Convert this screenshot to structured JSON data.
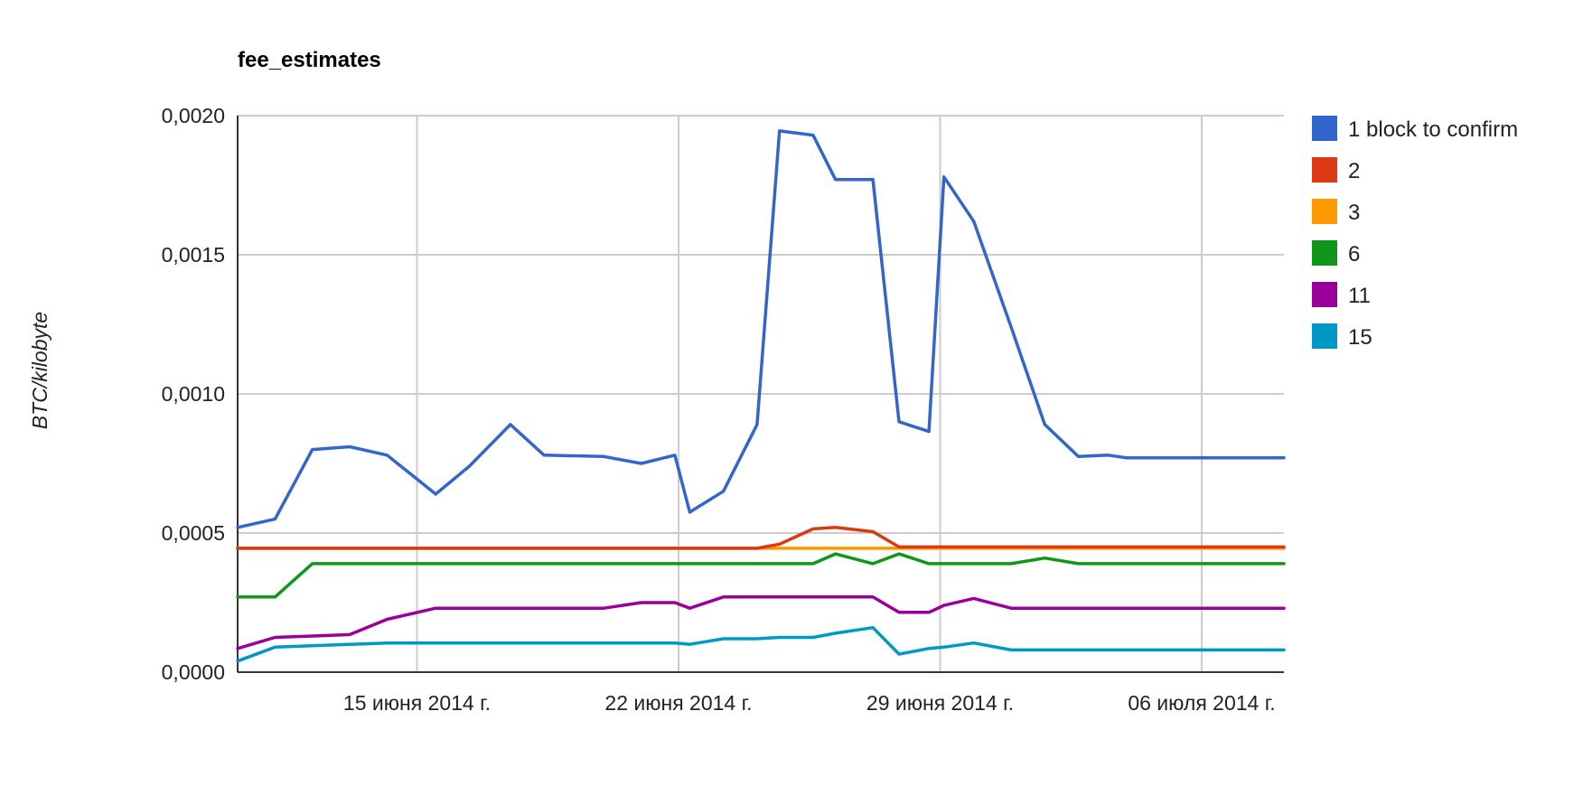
{
  "chart_data": {
    "type": "line",
    "title": "fee_estimates",
    "ylabel": "BTC/kilobyte",
    "xlabel": "",
    "ylim": [
      0,
      0.002
    ],
    "y_ticks": [
      "0,0000",
      "0,0005",
      "0,0010",
      "0,0015",
      "0,0020"
    ],
    "y_tick_values": [
      0,
      0.0005,
      0.001,
      0.0015,
      0.002
    ],
    "x_tick_labels": [
      "15 июня 2014 г.",
      "22 июня 2014 г.",
      "29 июня 2014 г.",
      "06 июля 2014 г."
    ],
    "x_tick_values": [
      7.0,
      14.0,
      21.0,
      28.0
    ],
    "xlim": [
      2.2,
      30.2
    ],
    "grid": true,
    "legend_position": "right",
    "x": [
      2.2,
      3.2,
      4.2,
      5.2,
      6.2,
      7.5,
      8.4,
      9.5,
      10.4,
      12.0,
      13.0,
      13.9,
      14.3,
      15.2,
      16.1,
      16.7,
      17.6,
      18.2,
      19.2,
      19.9,
      20.7,
      21.1,
      21.9,
      22.9,
      23.8,
      24.7,
      25.5,
      26.0,
      27.3,
      27.8,
      28.7,
      29.6,
      30.2
    ],
    "series": [
      {
        "name": "1 block to confirm",
        "color": "#3366cc",
        "values": [
          0.00052,
          0.00055,
          0.0008,
          0.00081,
          0.00078,
          0.00064,
          0.00074,
          0.00089,
          0.00078,
          0.000775,
          0.00075,
          0.00078,
          0.000575,
          0.00065,
          0.00089,
          0.001945,
          0.00193,
          0.00177,
          0.00177,
          0.0009,
          0.000865,
          0.00178,
          0.00162,
          0.00124,
          0.00089,
          0.000775,
          0.00078,
          0.00077,
          0.00077,
          0.00077,
          0.00077,
          0.00077,
          0.00077
        ]
      },
      {
        "name": "2",
        "color": "#dc3912",
        "values": [
          0.000445,
          0.000445,
          0.000445,
          0.000445,
          0.000445,
          0.000445,
          0.000445,
          0.000445,
          0.000445,
          0.000445,
          0.000445,
          0.000445,
          0.000445,
          0.000445,
          0.000445,
          0.00046,
          0.000515,
          0.00052,
          0.000505,
          0.00045,
          0.00045,
          0.00045,
          0.00045,
          0.00045,
          0.00045,
          0.00045,
          0.00045,
          0.00045,
          0.00045,
          0.00045,
          0.00045,
          0.00045,
          0.00045
        ]
      },
      {
        "name": "3",
        "color": "#ff9900",
        "values": [
          0.000445,
          0.000445,
          0.000445,
          0.000445,
          0.000445,
          0.000445,
          0.000445,
          0.000445,
          0.000445,
          0.000445,
          0.000445,
          0.000445,
          0.000445,
          0.000445,
          0.000445,
          0.000445,
          0.000445,
          0.000445,
          0.000445,
          0.000445,
          0.000445,
          0.000445,
          0.000445,
          0.000445,
          0.000445,
          0.000445,
          0.000445,
          0.000445,
          0.000445,
          0.000445,
          0.000445,
          0.000445,
          0.000445
        ]
      },
      {
        "name": "6",
        "color": "#109618",
        "values": [
          0.00027,
          0.00027,
          0.00039,
          0.00039,
          0.00039,
          0.00039,
          0.00039,
          0.00039,
          0.00039,
          0.00039,
          0.00039,
          0.00039,
          0.00039,
          0.00039,
          0.00039,
          0.00039,
          0.00039,
          0.000425,
          0.00039,
          0.000425,
          0.00039,
          0.00039,
          0.00039,
          0.00039,
          0.00041,
          0.00039,
          0.00039,
          0.00039,
          0.00039,
          0.00039,
          0.00039,
          0.00039,
          0.00039
        ]
      },
      {
        "name": "11",
        "color": "#990099",
        "values": [
          8.5e-05,
          0.000125,
          0.00013,
          0.000135,
          0.00019,
          0.00023,
          0.00023,
          0.00023,
          0.00023,
          0.00023,
          0.00025,
          0.00025,
          0.00023,
          0.00027,
          0.00027,
          0.00027,
          0.00027,
          0.00027,
          0.00027,
          0.000215,
          0.000215,
          0.00024,
          0.000265,
          0.00023,
          0.00023,
          0.00023,
          0.00023,
          0.00023,
          0.00023,
          0.00023,
          0.00023,
          0.00023,
          0.00023
        ]
      },
      {
        "name": "15",
        "color": "#0099c6",
        "values": [
          4e-05,
          9e-05,
          9.5e-05,
          0.0001,
          0.000105,
          0.000105,
          0.000105,
          0.000105,
          0.000105,
          0.000105,
          0.000105,
          0.000105,
          0.0001,
          0.00012,
          0.00012,
          0.000125,
          0.000125,
          0.00014,
          0.00016,
          6.5e-05,
          8.5e-05,
          9e-05,
          0.000105,
          8e-05,
          8e-05,
          8e-05,
          8e-05,
          8e-05,
          8e-05,
          8e-05,
          8e-05,
          8e-05,
          8e-05
        ]
      }
    ]
  }
}
